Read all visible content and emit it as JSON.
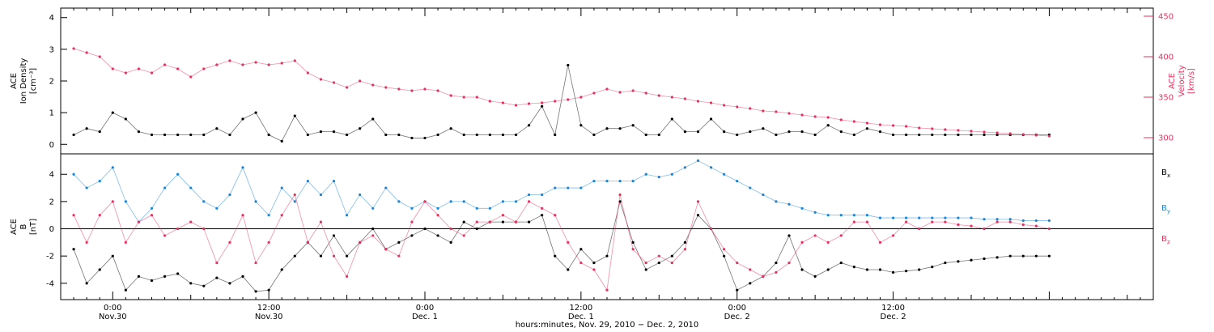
{
  "chart_data": [
    {
      "type": "scatter",
      "panel": "top",
      "ylabel_left": [
        "ACE",
        "Ion Density",
        "[cm⁻³]"
      ],
      "ylabel_right": [
        "ACE",
        "Velocity",
        "[km/s]"
      ],
      "y_left_ticks": [
        "0",
        "1",
        "2",
        "3",
        "4"
      ],
      "y_left_lim": [
        -0.3,
        4.3
      ],
      "y_right_ticks": [
        "300",
        "350",
        "400",
        "450"
      ],
      "y_right_lim": [
        280,
        460
      ],
      "x_unit": "hours since 2010-11-29 00:00",
      "series": [
        {
          "name": "Ion Density",
          "color": "#000000",
          "axis": "left",
          "x": [
            21.0,
            22.0,
            23.0,
            24.0,
            25.0,
            26.0,
            27.0,
            28.0,
            29.0,
            30.0,
            31.0,
            32.0,
            33.0,
            34.0,
            35.0,
            36.0,
            37.0,
            38.0,
            39.0,
            40.0,
            41.0,
            42.0,
            43.0,
            44.0,
            45.0,
            46.0,
            47.0,
            48.0,
            49.0,
            50.0,
            51.0,
            52.0,
            53.0,
            54.0,
            55.0,
            56.0,
            57.0,
            58.0,
            59.0,
            60.0,
            61.0,
            62.0,
            63.0,
            64.0,
            65.0,
            66.0,
            67.0,
            68.0,
            69.0,
            70.0,
            71.0,
            72.0,
            73.0,
            74.0,
            75.0,
            76.0,
            77.0,
            78.0,
            79.0,
            80.0,
            81.0,
            82.0,
            83.0,
            84.0,
            85.0,
            86.0,
            87.0,
            88.0,
            89.0,
            90.0,
            91.0,
            92.0,
            93.0,
            94.0,
            95.0,
            96.0
          ],
          "y": [
            0.3,
            0.5,
            0.4,
            1.0,
            0.8,
            0.4,
            0.3,
            0.3,
            0.3,
            0.3,
            0.3,
            0.5,
            0.3,
            0.8,
            1.0,
            0.3,
            0.1,
            0.9,
            0.3,
            0.4,
            0.4,
            0.3,
            0.5,
            0.8,
            0.3,
            0.3,
            0.2,
            0.2,
            0.3,
            0.5,
            0.3,
            0.3,
            0.3,
            0.3,
            0.3,
            0.6,
            1.2,
            0.3,
            2.5,
            0.6,
            0.3,
            0.5,
            0.5,
            0.6,
            0.3,
            0.3,
            0.8,
            0.4,
            0.4,
            0.8,
            0.4,
            0.3,
            0.4,
            0.5,
            0.3,
            0.4,
            0.4,
            0.3,
            0.6,
            0.4,
            0.3,
            0.5,
            0.4,
            0.3,
            0.3,
            0.3,
            0.3,
            0.3,
            0.3,
            0.3,
            0.3,
            0.3,
            0.3,
            0.3,
            0.3,
            0.3
          ]
        },
        {
          "name": "Velocity",
          "color": "#e8315f",
          "axis": "right",
          "x": [
            21.0,
            22.0,
            23.0,
            24.0,
            25.0,
            26.0,
            27.0,
            28.0,
            29.0,
            30.0,
            31.0,
            32.0,
            33.0,
            34.0,
            35.0,
            36.0,
            37.0,
            38.0,
            39.0,
            40.0,
            41.0,
            42.0,
            43.0,
            44.0,
            45.0,
            46.0,
            47.0,
            48.0,
            49.0,
            50.0,
            51.0,
            52.0,
            53.0,
            54.0,
            55.0,
            56.0,
            57.0,
            58.0,
            59.0,
            60.0,
            61.0,
            62.0,
            63.0,
            64.0,
            65.0,
            66.0,
            67.0,
            68.0,
            69.0,
            70.0,
            71.0,
            72.0,
            73.0,
            74.0,
            75.0,
            76.0,
            77.0,
            78.0,
            79.0,
            80.0,
            81.0,
            82.0,
            83.0,
            84.0,
            85.0,
            86.0,
            87.0,
            88.0,
            89.0,
            90.0,
            91.0,
            92.0,
            93.0,
            94.0,
            95.0,
            96.0
          ],
          "y": [
            410,
            405,
            400,
            385,
            380,
            385,
            380,
            390,
            385,
            375,
            385,
            390,
            395,
            390,
            393,
            390,
            392,
            395,
            380,
            372,
            368,
            362,
            370,
            365,
            362,
            360,
            358,
            360,
            358,
            352,
            350,
            350,
            345,
            343,
            340,
            342,
            343,
            345,
            347,
            350,
            355,
            360,
            356,
            358,
            355,
            352,
            350,
            348,
            345,
            343,
            340,
            338,
            336,
            333,
            332,
            330,
            328,
            326,
            325,
            322,
            320,
            318,
            316,
            315,
            314,
            312,
            311,
            310,
            309,
            308,
            307,
            306,
            305,
            304,
            303,
            302
          ]
        }
      ]
    },
    {
      "type": "scatter",
      "panel": "bottom",
      "ylabel": [
        "ACE",
        "B",
        "[nT]"
      ],
      "y_ticks": [
        "-4",
        "-2",
        "0",
        "2",
        "4"
      ],
      "ylim": [
        -5.2,
        5.5
      ],
      "x_unit": "hours since 2010-11-29 00:00",
      "series": [
        {
          "name": "Bx",
          "color": "#000000",
          "x": [
            21.0,
            22.0,
            23.0,
            24.0,
            25.0,
            26.0,
            27.0,
            28.0,
            29.0,
            30.0,
            31.0,
            32.0,
            33.0,
            34.0,
            35.0,
            36.0,
            37.0,
            38.0,
            39.0,
            40.0,
            41.0,
            42.0,
            43.0,
            44.0,
            45.0,
            46.0,
            47.0,
            48.0,
            49.0,
            50.0,
            51.0,
            52.0,
            53.0,
            54.0,
            55.0,
            56.0,
            57.0,
            58.0,
            59.0,
            60.0,
            61.0,
            62.0,
            63.0,
            64.0,
            65.0,
            66.0,
            67.0,
            68.0,
            69.0,
            70.0,
            71.0,
            72.0,
            73.0,
            74.0,
            75.0,
            76.0,
            77.0,
            78.0,
            79.0,
            80.0,
            81.0,
            82.0,
            83.0,
            84.0,
            85.0,
            86.0,
            87.0,
            88.0,
            89.0,
            90.0,
            91.0,
            92.0,
            93.0,
            94.0,
            95.0,
            96.0
          ],
          "y": [
            -1.5,
            -4.0,
            -3.0,
            -2.0,
            -4.5,
            -3.5,
            -3.8,
            -3.5,
            -3.3,
            -4.0,
            -4.2,
            -3.6,
            -4.0,
            -3.5,
            -4.6,
            -4.5,
            -3.0,
            -2.0,
            -1.0,
            -2.0,
            -0.5,
            -2.0,
            -1.0,
            0.0,
            -1.5,
            -1.0,
            -0.5,
            0.0,
            -0.5,
            -1.0,
            0.5,
            0.0,
            0.5,
            0.5,
            0.5,
            0.5,
            1.0,
            -2.0,
            -3.0,
            -1.5,
            -2.5,
            -2.0,
            2.0,
            -1.0,
            -3.0,
            -2.5,
            -2.0,
            -1.0,
            1.0,
            0.0,
            -2.0,
            -4.5,
            -4.0,
            -3.5,
            -2.5,
            -0.5,
            -3.0,
            -3.5,
            -3.0,
            -2.5,
            -2.8,
            -3.0,
            -3.0,
            -3.2,
            -3.1,
            -3.0,
            -2.8,
            -2.5,
            -2.4,
            -2.3,
            -2.2,
            -2.1,
            -2.0,
            -2.0,
            -2.0,
            -2.0
          ]
        },
        {
          "name": "By",
          "color": "#1a86d8",
          "x": [
            21.0,
            22.0,
            23.0,
            24.0,
            25.0,
            26.0,
            27.0,
            28.0,
            29.0,
            30.0,
            31.0,
            32.0,
            33.0,
            34.0,
            35.0,
            36.0,
            37.0,
            38.0,
            39.0,
            40.0,
            41.0,
            42.0,
            43.0,
            44.0,
            45.0,
            46.0,
            47.0,
            48.0,
            49.0,
            50.0,
            51.0,
            52.0,
            53.0,
            54.0,
            55.0,
            56.0,
            57.0,
            58.0,
            59.0,
            60.0,
            61.0,
            62.0,
            63.0,
            64.0,
            65.0,
            66.0,
            67.0,
            68.0,
            69.0,
            70.0,
            71.0,
            72.0,
            73.0,
            74.0,
            75.0,
            76.0,
            77.0,
            78.0,
            79.0,
            80.0,
            81.0,
            82.0,
            83.0,
            84.0,
            85.0,
            86.0,
            87.0,
            88.0,
            89.0,
            90.0,
            91.0,
            92.0,
            93.0,
            94.0,
            95.0,
            96.0
          ],
          "y": [
            4.0,
            3.0,
            3.5,
            4.5,
            2.0,
            0.5,
            1.5,
            3.0,
            4.0,
            3.0,
            2.0,
            1.5,
            2.5,
            4.5,
            2.0,
            1.0,
            3.0,
            2.0,
            3.5,
            2.5,
            3.5,
            1.0,
            2.5,
            1.5,
            3.0,
            2.0,
            1.5,
            2.0,
            1.5,
            2.0,
            2.0,
            1.5,
            1.5,
            2.0,
            2.0,
            2.5,
            2.5,
            3.0,
            3.0,
            3.0,
            3.5,
            3.5,
            3.5,
            3.5,
            4.0,
            3.8,
            4.0,
            4.5,
            5.0,
            4.5,
            4.0,
            3.5,
            3.0,
            2.5,
            2.0,
            1.8,
            1.5,
            1.2,
            1.0,
            1.0,
            1.0,
            1.0,
            0.8,
            0.8,
            0.8,
            0.8,
            0.8,
            0.8,
            0.8,
            0.8,
            0.7,
            0.7,
            0.7,
            0.6,
            0.6,
            0.6
          ]
        },
        {
          "name": "Bz",
          "color": "#e8315f",
          "x": [
            21.0,
            22.0,
            23.0,
            24.0,
            25.0,
            26.0,
            27.0,
            28.0,
            29.0,
            30.0,
            31.0,
            32.0,
            33.0,
            34.0,
            35.0,
            36.0,
            37.0,
            38.0,
            39.0,
            40.0,
            41.0,
            42.0,
            43.0,
            44.0,
            45.0,
            46.0,
            47.0,
            48.0,
            49.0,
            50.0,
            51.0,
            52.0,
            53.0,
            54.0,
            55.0,
            56.0,
            57.0,
            58.0,
            59.0,
            60.0,
            61.0,
            62.0,
            63.0,
            64.0,
            65.0,
            66.0,
            67.0,
            68.0,
            69.0,
            70.0,
            71.0,
            72.0,
            73.0,
            74.0,
            75.0,
            76.0,
            77.0,
            78.0,
            79.0,
            80.0,
            81.0,
            82.0,
            83.0,
            84.0,
            85.0,
            86.0,
            87.0,
            88.0,
            89.0,
            90.0,
            91.0,
            92.0,
            93.0,
            94.0,
            95.0,
            96.0
          ],
          "y": [
            1.0,
            -1.0,
            1.0,
            2.0,
            -1.0,
            0.5,
            1.0,
            -0.5,
            0.0,
            0.5,
            0.0,
            -2.5,
            -1.0,
            1.0,
            -2.5,
            -1.0,
            1.0,
            2.5,
            -1.0,
            0.5,
            -2.0,
            -3.5,
            -1.0,
            -0.5,
            -1.5,
            -2.0,
            0.5,
            2.0,
            1.0,
            0.0,
            -0.5,
            0.5,
            0.5,
            1.0,
            0.5,
            2.0,
            1.5,
            1.0,
            -1.0,
            -2.5,
            -3.0,
            -4.5,
            2.5,
            -1.5,
            -2.5,
            -2.0,
            -2.5,
            -1.5,
            2.0,
            0.0,
            -1.5,
            -2.5,
            -3.0,
            -3.5,
            -3.2,
            -2.5,
            -1.0,
            -0.5,
            -1.0,
            -0.5,
            0.5,
            0.5,
            -1.0,
            -0.5,
            0.5,
            0.0,
            0.5,
            0.5,
            0.3,
            0.2,
            0.0,
            0.5,
            0.5,
            0.3,
            0.2,
            0.0
          ]
        }
      ]
    }
  ],
  "x_axis": {
    "tick_labels": [
      {
        "time": "0:00",
        "date": "Nov.30"
      },
      {
        "time": "12:00",
        "date": "Nov.30"
      },
      {
        "time": "0:00",
        "date": "Dec. 1"
      },
      {
        "time": "12:00",
        "date": "Dec. 1"
      },
      {
        "time": "0:00",
        "date": "Dec. 2"
      },
      {
        "time": "12:00",
        "date": "Dec. 2"
      }
    ],
    "tick_hours": [
      24,
      36,
      48,
      60,
      72,
      84
    ],
    "xlim_hours": [
      20,
      104
    ],
    "xlabel": "hours:minutes, Nov. 29, 2010 − Dec. 2, 2010"
  },
  "legend": {
    "bx": {
      "text": "B",
      "sub": "x",
      "color": "#000000"
    },
    "by": {
      "text": "B",
      "sub": "y",
      "color": "#1a86d8"
    },
    "bz": {
      "text": "B",
      "sub": "z",
      "color": "#e8315f"
    }
  },
  "colors": {
    "red": "#e8315f",
    "blue": "#1a86d8",
    "black": "#000000"
  }
}
